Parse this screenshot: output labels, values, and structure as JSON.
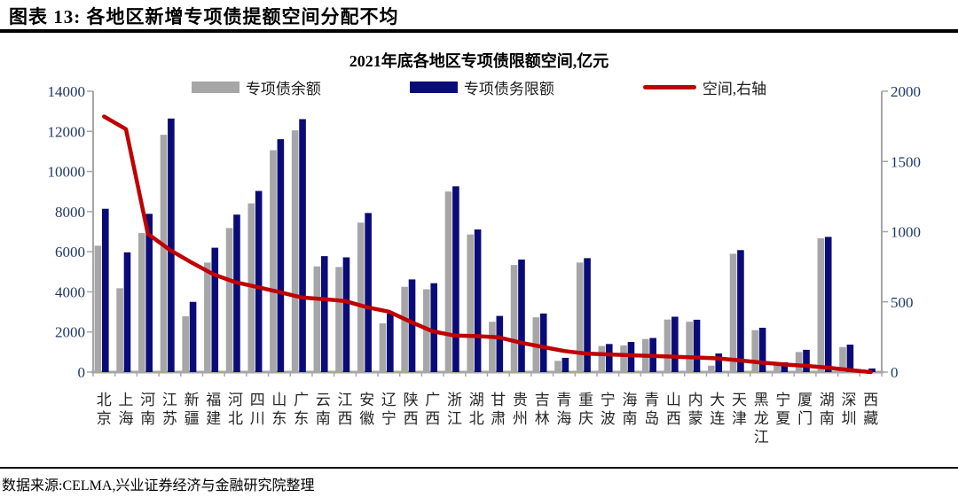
{
  "header": {
    "title": "图表 13: 各地区新增专项债提额空间分配不均"
  },
  "footer": {
    "source": "数据来源:CELMA,兴业证券经济与金融研究院整理"
  },
  "chart_data": {
    "type": "bar",
    "title": "2021年底各地区专项债限额空间,亿元",
    "legend_position": "top",
    "grid": false,
    "categories": [
      "北京",
      "上海",
      "河南",
      "江苏",
      "新疆",
      "福建",
      "河北",
      "四川",
      "山东",
      "广东",
      "云南",
      "江西",
      "安徽",
      "辽宁",
      "陕西",
      "广西",
      "浙江",
      "湖北",
      "甘肃",
      "贵州",
      "吉林",
      "青海",
      "重庆",
      "宁波",
      "海南",
      "青岛",
      "山西",
      "内蒙",
      "大连",
      "天津",
      "黑龙江",
      "宁夏",
      "厦门",
      "湖南",
      "深圳",
      "西藏"
    ],
    "series": [
      {
        "name": "专项债余额",
        "type": "bar",
        "axis": "left",
        "color": "#a6a6a6",
        "values": [
          6300,
          4180,
          6930,
          11830,
          2780,
          5460,
          7180,
          8410,
          11060,
          12050,
          5270,
          5240,
          7450,
          2430,
          4250,
          4130,
          9000,
          6860,
          2510,
          5340,
          2730,
          560,
          5460,
          1300,
          1330,
          1650,
          2620,
          2510,
          320,
          5900,
          2090,
          370,
          1000,
          6670,
          1250,
          80
        ]
      },
      {
        "name": "专项债务限额",
        "type": "bar",
        "axis": "left",
        "color": "#0b0b78",
        "values": [
          8140,
          5970,
          7890,
          12640,
          3500,
          6200,
          7850,
          9030,
          11610,
          12610,
          5780,
          5720,
          7930,
          2910,
          4620,
          4430,
          9260,
          7110,
          2800,
          5610,
          2920,
          710,
          5680,
          1400,
          1500,
          1700,
          2760,
          2610,
          930,
          6080,
          2210,
          490,
          1110,
          6740,
          1370,
          180
        ]
      },
      {
        "name": "空间,右轴",
        "type": "line",
        "axis": "right",
        "color": "#c00000",
        "values": [
          1820,
          1730,
          985,
          870,
          780,
          695,
          640,
          605,
          570,
          532,
          520,
          506,
          462,
          430,
          358,
          290,
          260,
          256,
          248,
          210,
          180,
          150,
          132,
          126,
          120,
          115,
          110,
          104,
          98,
          84,
          68,
          55,
          45,
          32,
          15,
          0
        ]
      }
    ],
    "left_axis": {
      "min": 0,
      "max": 14000,
      "ticks": [
        0,
        2000,
        4000,
        6000,
        8000,
        10000,
        12000,
        14000
      ]
    },
    "right_axis": {
      "min": 0,
      "max": 2000,
      "ticks": [
        0,
        500,
        1000,
        1500,
        2000
      ]
    },
    "axis_label_color": "#1f3864",
    "category_label_color": "#262626",
    "axis_line_color": "#a6a6a6"
  }
}
